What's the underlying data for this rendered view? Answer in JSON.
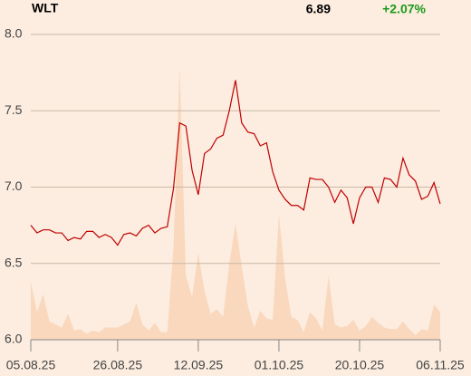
{
  "header": {
    "symbol": "WLT",
    "price": "6.89",
    "change": "+2.07%"
  },
  "chart_data": {
    "type": "line",
    "categories": [
      "05.08.25",
      null,
      null,
      null,
      null,
      null,
      null,
      null,
      null,
      null,
      null,
      null,
      null,
      null,
      "26.08.25",
      null,
      null,
      null,
      null,
      null,
      null,
      null,
      null,
      null,
      null,
      null,
      null,
      "12.09.25",
      null,
      null,
      null,
      null,
      null,
      null,
      null,
      null,
      null,
      null,
      null,
      null,
      "01.10.25",
      null,
      null,
      null,
      null,
      null,
      null,
      null,
      null,
      null,
      null,
      null,
      null,
      "20.10.25",
      null,
      null,
      null,
      null,
      null,
      null,
      null,
      null,
      null,
      null,
      null,
      null,
      "06.11.25"
    ],
    "series": [
      {
        "color": "#c00000",
        "values": [
          6.75,
          6.7,
          6.72,
          6.72,
          6.7,
          6.7,
          6.65,
          6.67,
          6.66,
          6.71,
          6.71,
          6.67,
          6.69,
          6.67,
          6.62,
          6.69,
          6.7,
          6.68,
          6.73,
          6.75,
          6.7,
          6.73,
          6.74,
          6.99,
          7.42,
          7.4,
          7.11,
          6.95,
          7.22,
          7.25,
          7.32,
          7.34,
          7.5,
          7.7,
          7.42,
          7.36,
          7.35,
          7.27,
          7.29,
          7.1,
          6.98,
          6.92,
          6.88,
          6.88,
          6.85,
          7.06,
          7.05,
          7.05,
          7.0,
          6.9,
          6.98,
          6.93,
          6.76,
          6.93,
          7.0,
          7.0,
          6.9,
          7.06,
          7.05,
          7.0,
          7.19,
          7.08,
          7.04,
          6.92,
          6.94,
          7.03,
          6.89
        ]
      },
      {
        "type": "area",
        "color": "#f9d8bd",
        "values": [
          6.38,
          6.18,
          6.3,
          6.12,
          6.1,
          6.08,
          6.17,
          6.06,
          6.07,
          6.04,
          6.06,
          6.05,
          6.08,
          6.08,
          6.08,
          6.1,
          6.12,
          6.24,
          6.1,
          6.06,
          6.11,
          6.05,
          6.05,
          6.6,
          7.78,
          6.42,
          6.28,
          6.57,
          6.32,
          6.17,
          6.2,
          6.15,
          6.5,
          6.76,
          6.48,
          6.22,
          6.08,
          6.19,
          6.14,
          6.13,
          6.82,
          6.4,
          6.15,
          6.13,
          6.05,
          6.18,
          6.14,
          6.06,
          6.42,
          6.1,
          6.08,
          6.09,
          6.13,
          6.06,
          6.09,
          6.15,
          6.11,
          6.08,
          6.07,
          6.07,
          6.12,
          6.07,
          6.03,
          6.07,
          6.06,
          6.23,
          6.18
        ]
      }
    ],
    "ylim": [
      6.0,
      8.0
    ],
    "yticks": [
      {
        "value": 6.0,
        "label": "6.0"
      },
      6.5,
      {
        "value": 7.0,
        "label": "7.0"
      },
      7.5,
      {
        "value": 8.0,
        "label": "8.0"
      }
    ],
    "grid": true
  }
}
